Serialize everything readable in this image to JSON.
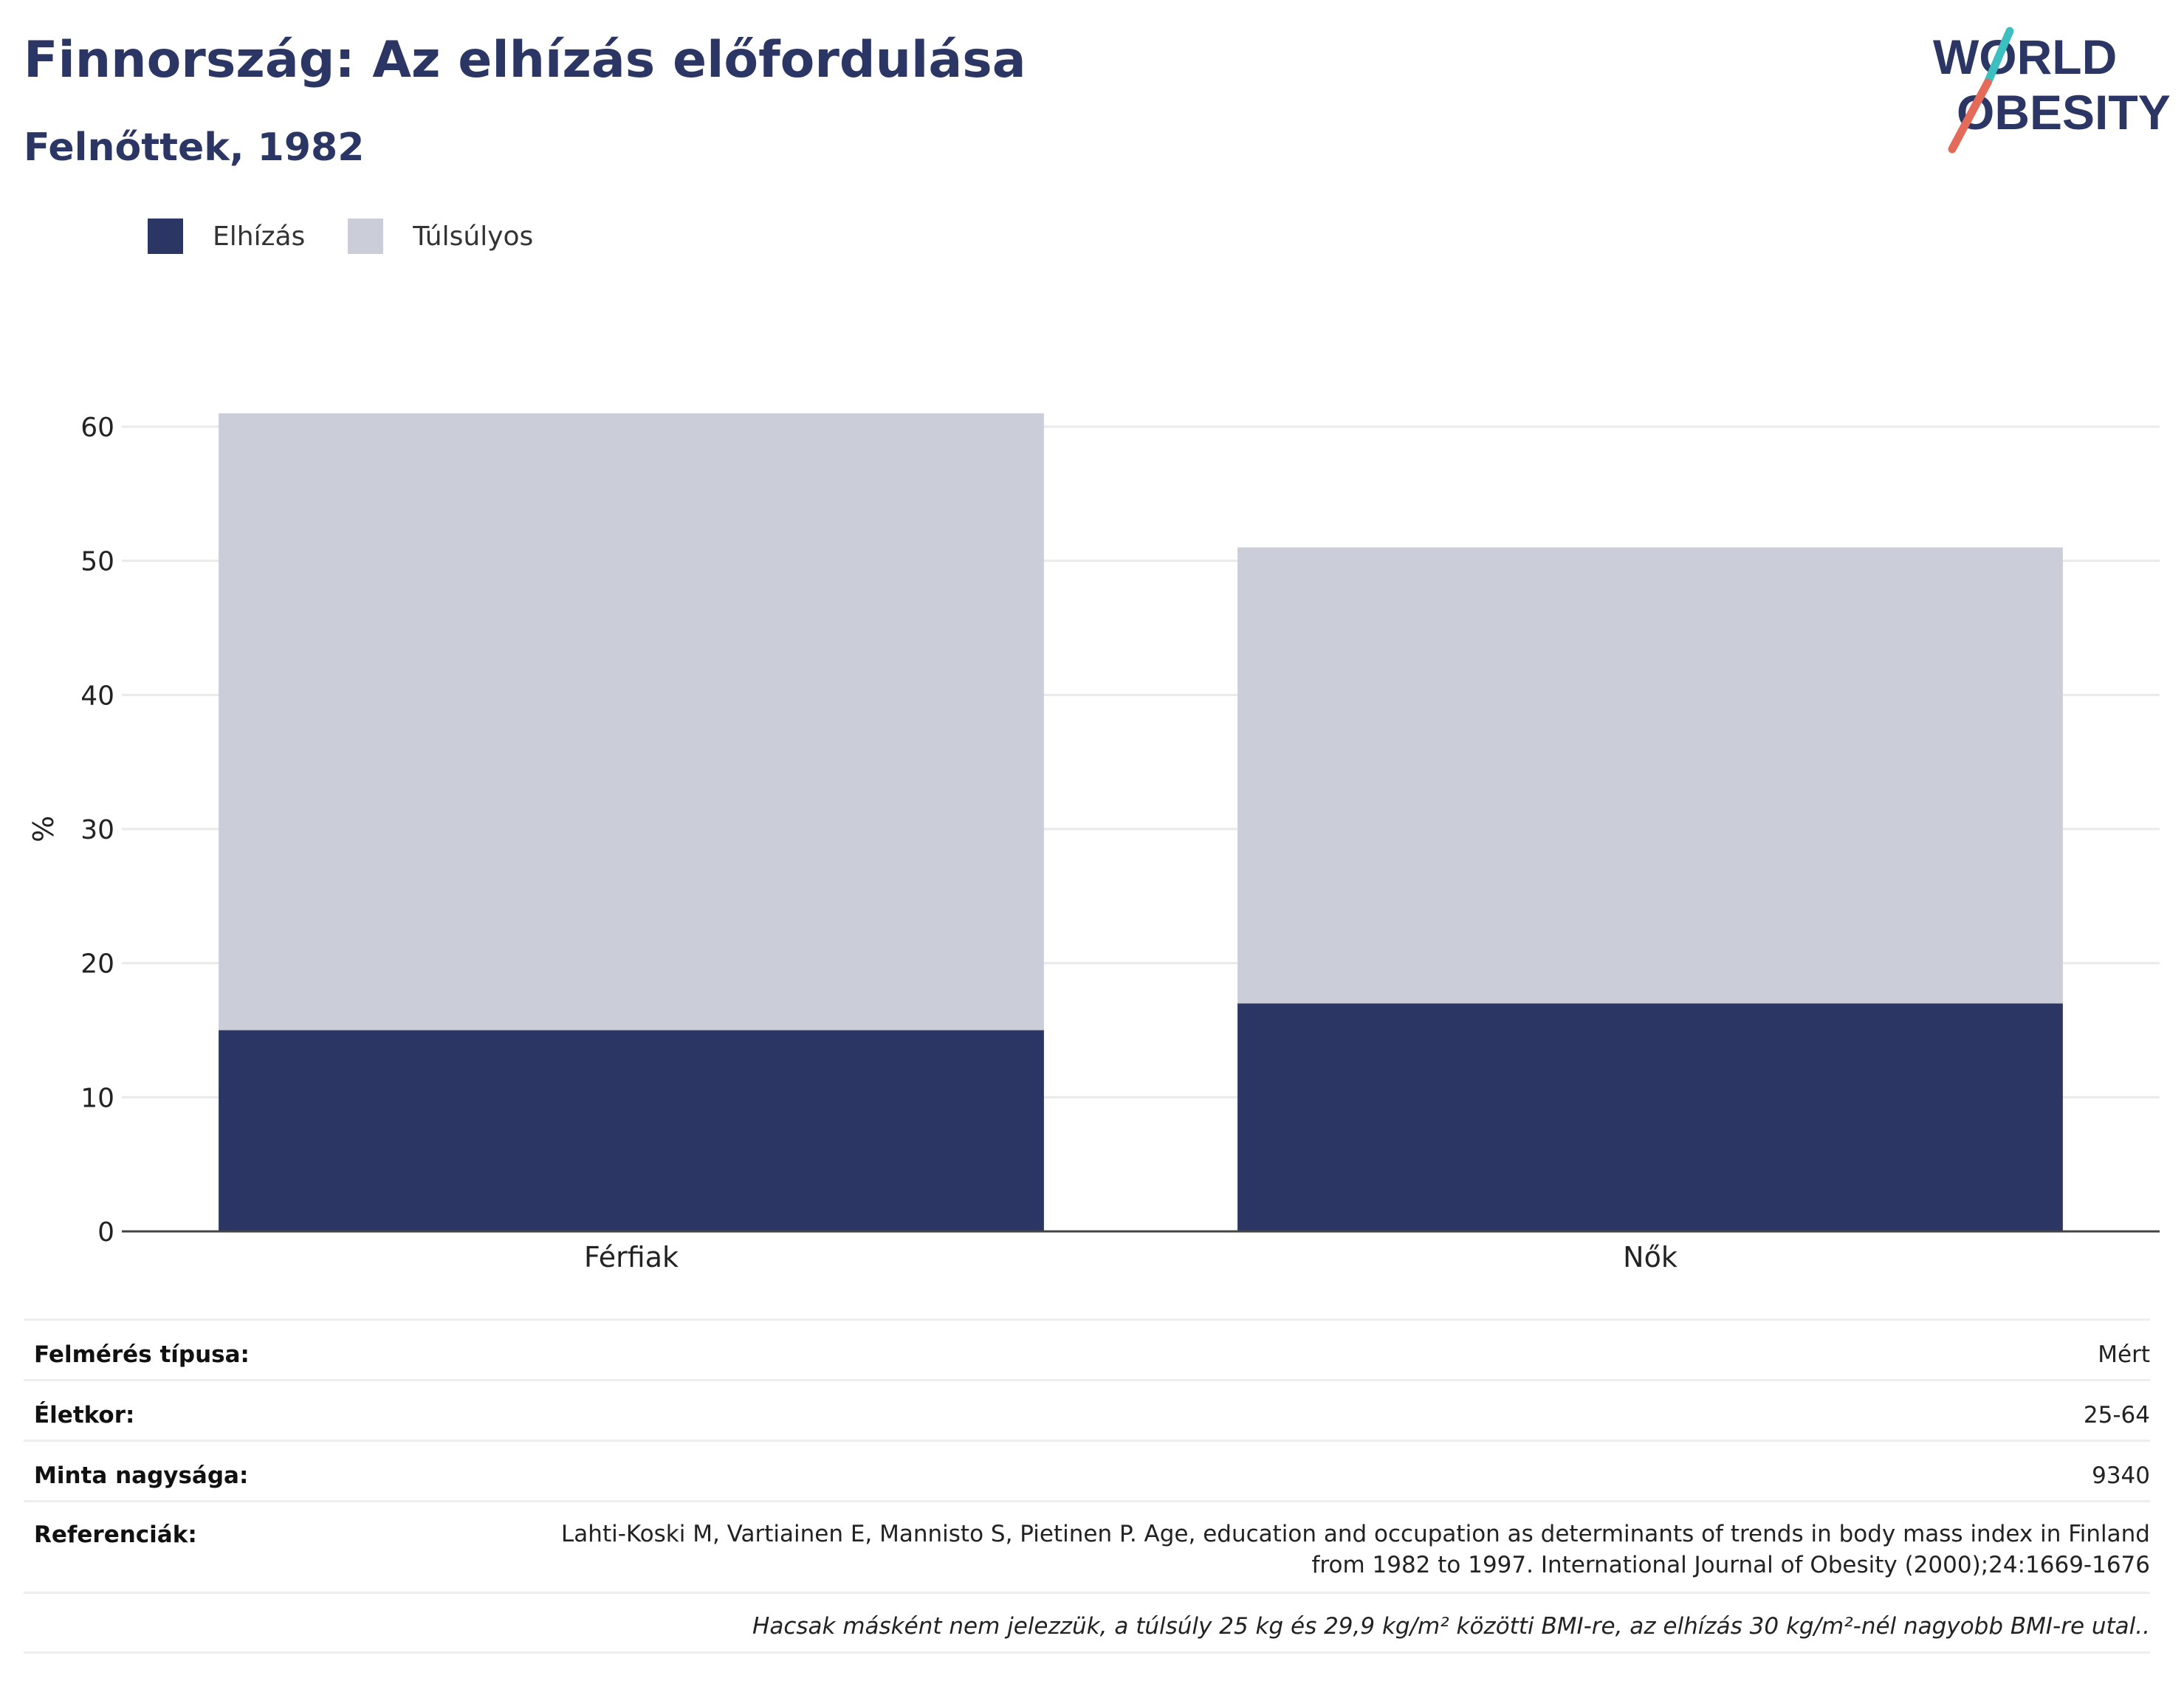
{
  "header": {
    "title": "Finnország: Az elhízás előfordulása",
    "subtitle": "Felnőttek, 1982"
  },
  "logo": {
    "line1": "WORLD",
    "line2": "OBESITY",
    "accent_teal": "#3bbfbf",
    "accent_red": "#e46a5a"
  },
  "colors": {
    "obesity": "#2b3664",
    "overweight": "#cbcdd8",
    "text": "#2b3664"
  },
  "legend": {
    "items": [
      {
        "label": "Elhízás",
        "color": "#2b3664"
      },
      {
        "label": "Túlsúlyos",
        "color": "#cbcdd8"
      }
    ]
  },
  "chart_data": {
    "type": "bar",
    "stacked": true,
    "categories": [
      "Férfiak",
      "Nők"
    ],
    "series": [
      {
        "name": "Elhízás",
        "values": [
          15,
          17
        ],
        "color": "#2b3664"
      },
      {
        "name": "Túlsúlyos",
        "values": [
          46,
          34
        ],
        "color": "#cbcdd8"
      }
    ],
    "ylabel": "%",
    "ylim": [
      0,
      60
    ],
    "yticks": [
      0,
      10,
      20,
      30,
      40,
      50,
      60
    ],
    "grid": true,
    "legend_position": "top-left"
  },
  "meta": {
    "survey_type_label": "Felmérés típusa:",
    "survey_type_value": "Mért",
    "age_label": "Életkor:",
    "age_value": "25-64",
    "sample_label": "Minta nagysága:",
    "sample_value": "9340",
    "references_label": "Referenciák:",
    "references_value": "Lahti-Koski M, Vartiainen E, Mannisto S, Pietinen P. Age, education and occupation as determinants of trends in body mass index in Finland from 1982 to 1997. International Journal of Obesity (2000);24:1669-1676",
    "note": "Hacsak másként nem jelezzük, a túlsúly 25 kg és 29,9 kg/m² közötti BMI-re, az elhízás 30 kg/m²-nél nagyobb BMI-re utal.."
  }
}
